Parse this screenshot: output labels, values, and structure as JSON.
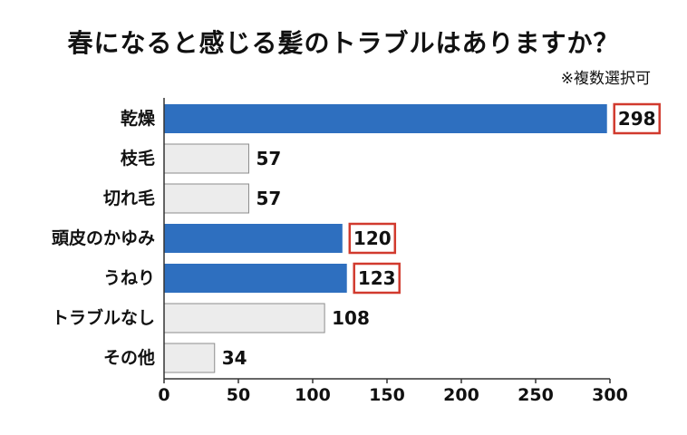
{
  "chart_data": {
    "type": "bar",
    "orientation": "horizontal",
    "title": "春になると感じる髪のトラブルはありますか？",
    "subtitle": "※複数選択可",
    "categories": [
      "乾燥",
      "枝毛",
      "切れ毛",
      "頭皮のかゆみ",
      "うねり",
      "トラブルなし",
      "その他"
    ],
    "values": [
      298,
      57,
      57,
      120,
      123,
      108,
      34
    ],
    "highlighted": [
      true,
      false,
      false,
      true,
      true,
      false,
      false
    ],
    "xlim": [
      0,
      300
    ],
    "xticks": [
      0,
      50,
      100,
      150,
      200,
      250,
      300
    ],
    "xlabel": "",
    "ylabel": "",
    "grid": false,
    "colors": {
      "highlight_fill": "#2e6fbf",
      "normal_fill": "#ececec",
      "normal_stroke": "#8c8c8c",
      "label_box": "#d13a2e",
      "axis": "#333333"
    }
  }
}
